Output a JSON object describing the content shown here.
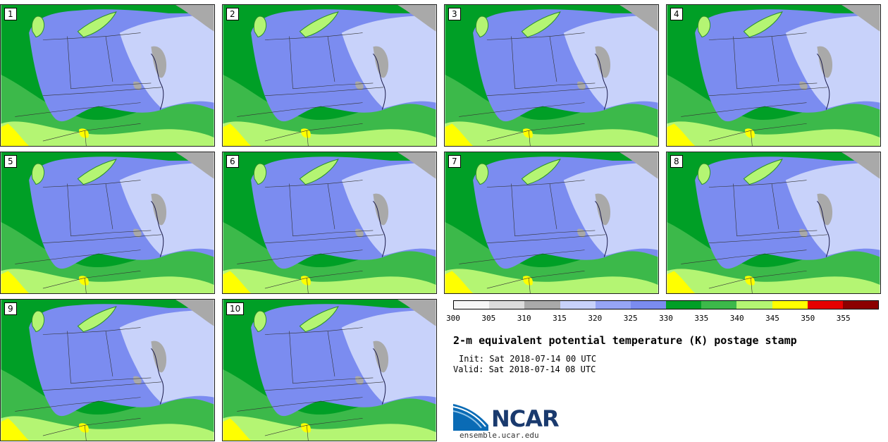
{
  "panels": [
    {
      "label": "1"
    },
    {
      "label": "2"
    },
    {
      "label": "3"
    },
    {
      "label": "4"
    },
    {
      "label": "5"
    },
    {
      "label": "6"
    },
    {
      "label": "7"
    },
    {
      "label": "8"
    },
    {
      "label": "9"
    },
    {
      "label": "10"
    }
  ],
  "colorbar": {
    "colors": [
      "#f7f7f7",
      "#dcdcdc",
      "#a9a9a9",
      "#c8d2fa",
      "#96a5f5",
      "#7b8cf0",
      "#009f26",
      "#3cb94a",
      "#b4f573",
      "#ffff00",
      "#e60000",
      "#8c0000"
    ],
    "ticks": [
      "300",
      "305",
      "310",
      "315",
      "320",
      "325",
      "330",
      "335",
      "340",
      "345",
      "350",
      "355"
    ]
  },
  "title": "2-m equivalent potential temperature (K) postage stamp",
  "init": "Init: Sat 2018-07-14 00 UTC",
  "valid": "Valid: Sat 2018-07-14 08 UTC",
  "logo": {
    "name": "NCAR",
    "url": "ensemble.ucar.edu"
  }
}
